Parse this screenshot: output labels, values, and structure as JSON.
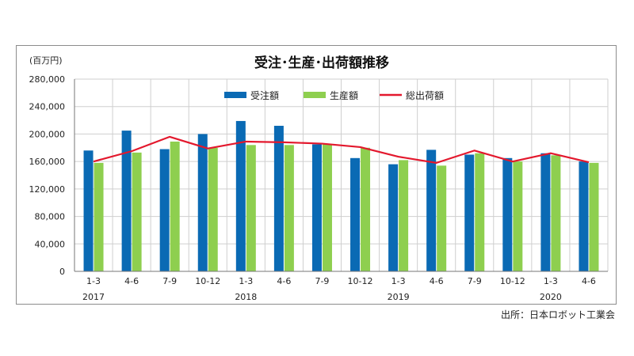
{
  "source": "出所：日本ロボット工業会",
  "colors": {
    "orders": "#0a6ab4",
    "production": "#8ecf4f",
    "shipments": "#e3182d",
    "grid": "#cfcfcf"
  },
  "chart_data": {
    "type": "bar",
    "title": "受注･生産･出荷額推移",
    "unit_label": "(百万円)",
    "ylim": [
      0,
      280000
    ],
    "yticks": [
      "0",
      "40,000",
      "80,000",
      "120,000",
      "160,000",
      "200,000",
      "240,000",
      "280,000"
    ],
    "grid": true,
    "legend_position": "top-center",
    "categories": [
      "1-3",
      "4-6",
      "7-9",
      "10-12",
      "1-3",
      "4-6",
      "7-9",
      "10-12",
      "1-3",
      "4-6",
      "7-9",
      "10-12",
      "1-3",
      "4-6"
    ],
    "years": [
      {
        "label": "2017",
        "index": 0
      },
      {
        "label": "2018",
        "index": 4
      },
      {
        "label": "2019",
        "index": 8
      },
      {
        "label": "2020",
        "index": 12
      }
    ],
    "series": [
      {
        "name": "受注額",
        "kind": "bar",
        "values": [
          176000,
          205000,
          178000,
          200000,
          219000,
          212000,
          185000,
          165000,
          156000,
          177000,
          170000,
          165000,
          172000,
          160000
        ]
      },
      {
        "name": "生産額",
        "kind": "bar",
        "values": [
          158000,
          173000,
          189000,
          180000,
          184000,
          184000,
          185000,
          180000,
          162000,
          154000,
          172000,
          160000,
          169000,
          158000
        ]
      },
      {
        "name": "総出荷額",
        "kind": "line",
        "values": [
          160000,
          175000,
          196000,
          179000,
          189000,
          188000,
          186000,
          181000,
          167000,
          158000,
          176000,
          160000,
          172000,
          159000
        ]
      }
    ]
  }
}
